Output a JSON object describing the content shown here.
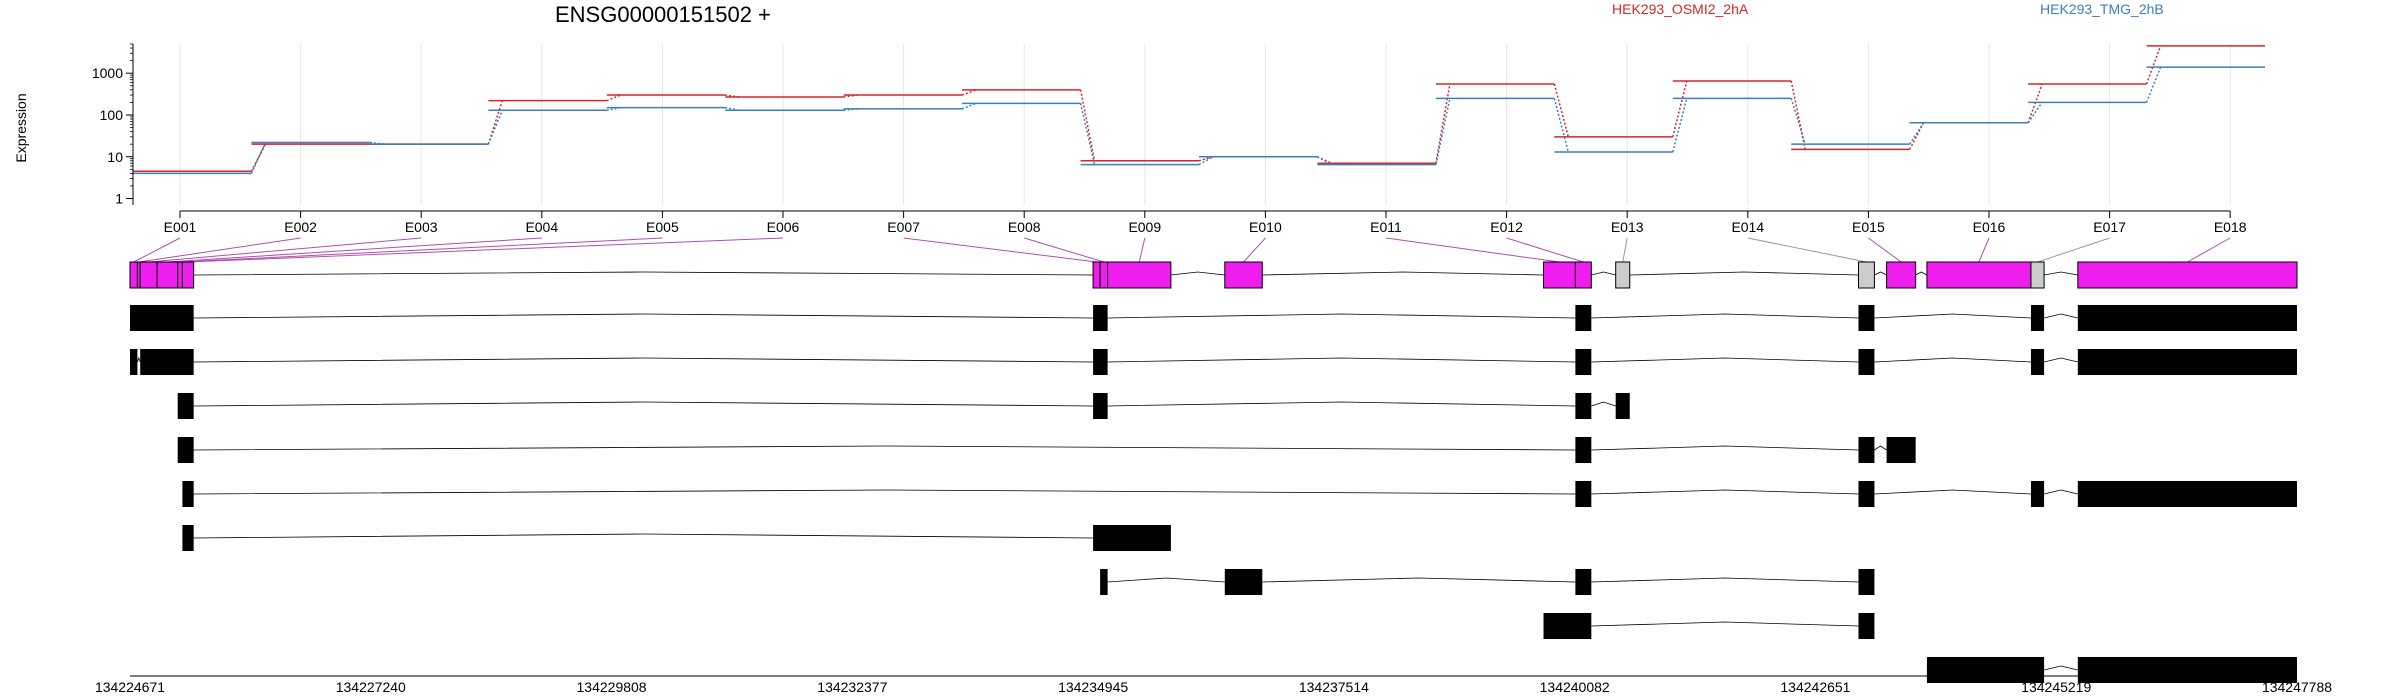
{
  "chart_data": {
    "type": "line",
    "title": "ENSG00000151502 +",
    "ylabel": "Expression",
    "yscale": "log",
    "ylim": [
      0.7,
      5000
    ],
    "yticks": [
      1,
      10,
      100,
      1000
    ],
    "ytick_labels": [
      "1",
      "10",
      "100",
      "1000"
    ],
    "grid": true,
    "legend_position": "top-right",
    "categories": [
      "E001",
      "E002",
      "E003",
      "E004",
      "E005",
      "E006",
      "E007",
      "E008",
      "E009",
      "E010",
      "E011",
      "E012",
      "E013",
      "E014",
      "E015",
      "E016",
      "E017",
      "E018"
    ],
    "series": [
      {
        "name": "HEK293_OSMI2_2hA",
        "color": "#d62728",
        "values": [
          4.5,
          20,
          20,
          220,
          300,
          270,
          300,
          400,
          8,
          10,
          7,
          550,
          30,
          650,
          15,
          65,
          550,
          4500
        ]
      },
      {
        "name": "HEK293_TMG_2hB",
        "color": "#3a7fc1",
        "values": [
          4,
          22,
          20,
          130,
          150,
          130,
          140,
          190,
          6.5,
          10,
          6.5,
          250,
          13,
          250,
          20,
          65,
          200,
          1400
        ]
      }
    ],
    "genomic_axis": {
      "range": [
        134224671,
        134247788
      ],
      "tick_labels": [
        "134224671",
        "134227240",
        "134229808",
        "134232377",
        "134234945",
        "134237514",
        "134240082",
        "134242651",
        "134245219",
        "134247788"
      ]
    },
    "exon_bins": [
      {
        "id": "E001",
        "start": 134224671,
        "end": 134224750,
        "highlight": true
      },
      {
        "id": "E002",
        "start": 134224750,
        "end": 134224780,
        "highlight": true
      },
      {
        "id": "E003",
        "start": 134224780,
        "end": 134224960,
        "highlight": true
      },
      {
        "id": "E004",
        "start": 134224960,
        "end": 134225180,
        "highlight": true
      },
      {
        "id": "E005",
        "start": 134225180,
        "end": 134225230,
        "highlight": true
      },
      {
        "id": "E006",
        "start": 134225230,
        "end": 134225350,
        "highlight": true
      },
      {
        "id": "E007",
        "start": 134234945,
        "end": 134235020,
        "highlight": true
      },
      {
        "id": "E008",
        "start": 134235020,
        "end": 134235100,
        "highlight": true
      },
      {
        "id": "E009",
        "start": 134235100,
        "end": 134235775,
        "highlight": true
      },
      {
        "id": "E010",
        "start": 134236350,
        "end": 134236750,
        "highlight": true
      },
      {
        "id": "E011",
        "start": 134239750,
        "end": 134240090,
        "highlight": true
      },
      {
        "id": "E012",
        "start": 134240090,
        "end": 134240260,
        "highlight": true
      },
      {
        "id": "E013",
        "start": 134240520,
        "end": 134240670,
        "highlight": false
      },
      {
        "id": "E014",
        "start": 134243110,
        "end": 134243280,
        "highlight": false
      },
      {
        "id": "E015",
        "start": 134243410,
        "end": 134243720,
        "highlight": true
      },
      {
        "id": "E016",
        "start": 134243840,
        "end": 134244950,
        "highlight": true
      },
      {
        "id": "E017",
        "start": 134244950,
        "end": 134245090,
        "highlight": false
      },
      {
        "id": "E018",
        "start": 134245450,
        "end": 134247788,
        "highlight": true
      }
    ],
    "transcripts": [
      [
        [
          134224671,
          134225350
        ],
        [
          134234945,
          134235100
        ],
        [
          134240090,
          134240260
        ],
        [
          134243110,
          134243280
        ],
        [
          134244950,
          134245090
        ],
        [
          134245450,
          134247788
        ]
      ],
      [
        [
          134224671,
          134224750
        ],
        [
          134224780,
          134225350
        ],
        [
          134234945,
          134235100
        ],
        [
          134240090,
          134240260
        ],
        [
          134243110,
          134243280
        ],
        [
          134244950,
          134245090
        ],
        [
          134245450,
          134247788
        ]
      ],
      [
        [
          134225180,
          134225350
        ],
        [
          134234945,
          134235100
        ],
        [
          134240090,
          134240260
        ],
        [
          134240520,
          134240670
        ]
      ],
      [
        [
          134225180,
          134225350
        ],
        [
          134240090,
          134240260
        ],
        [
          134243110,
          134243280
        ],
        [
          134243410,
          134243720
        ]
      ],
      [
        [
          134225230,
          134225350
        ],
        [
          134240090,
          134240260
        ],
        [
          134243110,
          134243280
        ],
        [
          134244950,
          134245090
        ],
        [
          134245450,
          134247788
        ]
      ],
      [
        [
          134225230,
          134225350
        ],
        [
          134234945,
          134235775
        ]
      ],
      [
        [
          134235020,
          134235100
        ],
        [
          134236350,
          134236750
        ],
        [
          134240090,
          134240260
        ],
        [
          134243110,
          134243280
        ]
      ],
      [
        [
          134239750,
          134240260
        ],
        [
          134243110,
          134243280
        ]
      ],
      [
        [
          134243840,
          134245090
        ],
        [
          134245450,
          134247788
        ]
      ]
    ]
  }
}
